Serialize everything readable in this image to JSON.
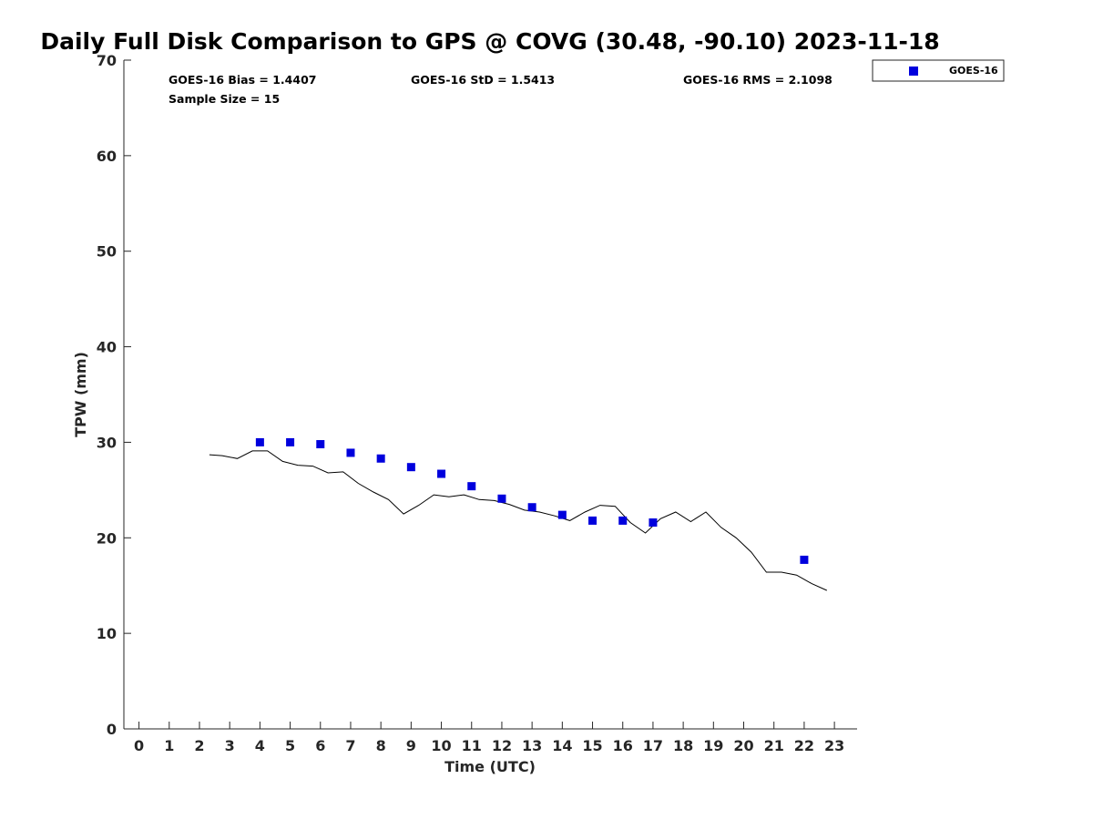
{
  "chart_data": {
    "type": "scatter",
    "title": "Daily Full Disk Comparison to GPS @ COVG (30.48, -90.10) 2023-11-18",
    "xlabel": "Time (UTC)",
    "ylabel": "TPW (mm)",
    "xlim": [
      -0.5,
      23.75
    ],
    "ylim": [
      0,
      70
    ],
    "xticks": [
      0,
      1,
      2,
      3,
      4,
      5,
      6,
      7,
      8,
      9,
      10,
      11,
      12,
      13,
      14,
      15,
      16,
      17,
      18,
      19,
      20,
      21,
      22,
      23
    ],
    "yticks": [
      0,
      10,
      20,
      30,
      40,
      50,
      60,
      70
    ],
    "grid": false,
    "legend_position": "top-right (outside)",
    "stats": {
      "bias": "GOES-16 Bias = 1.4407",
      "std": "GOES-16 StD = 1.5413",
      "rms": "GOES-16 RMS = 2.1098",
      "sample": "Sample Size = 15"
    },
    "series": [
      {
        "name": "GOES-16",
        "kind": "scatter",
        "marker": "square",
        "color": "#0000dd",
        "x": [
          4,
          5,
          6,
          7,
          8,
          9,
          10,
          11,
          12,
          13,
          14,
          15,
          16,
          17,
          22
        ],
        "y": [
          30.0,
          30.0,
          29.8,
          28.9,
          28.3,
          27.4,
          26.7,
          25.4,
          24.1,
          23.2,
          22.4,
          21.8,
          21.8,
          21.6,
          17.7
        ]
      },
      {
        "kind": "line",
        "color": "#000000",
        "x": [
          2.33,
          2.75,
          3.25,
          3.75,
          4.25,
          4.75,
          5.25,
          5.75,
          6.25,
          6.75,
          7.25,
          7.75,
          8.25,
          8.75,
          9.25,
          9.75,
          10.25,
          10.75,
          11.25,
          11.75,
          12.25,
          12.75,
          13.25,
          13.75,
          14.25,
          14.75,
          15.25,
          15.75,
          16.25,
          16.75,
          17.25,
          17.75,
          18.25,
          18.75,
          19.25,
          19.75,
          20.25,
          20.75,
          21.25,
          21.75,
          22.25,
          22.75
        ],
        "y": [
          28.7,
          28.6,
          28.3,
          29.1,
          29.1,
          28.0,
          27.6,
          27.5,
          26.8,
          26.9,
          25.7,
          24.8,
          24.0,
          22.5,
          23.4,
          24.5,
          24.3,
          24.5,
          24.0,
          23.9,
          23.5,
          22.9,
          22.7,
          22.3,
          21.8,
          22.7,
          23.4,
          23.3,
          21.6,
          20.5,
          22.0,
          22.7,
          21.7,
          22.7,
          21.1,
          20.0,
          18.5,
          16.4,
          16.4,
          16.1,
          15.2,
          14.5
        ]
      }
    ]
  }
}
